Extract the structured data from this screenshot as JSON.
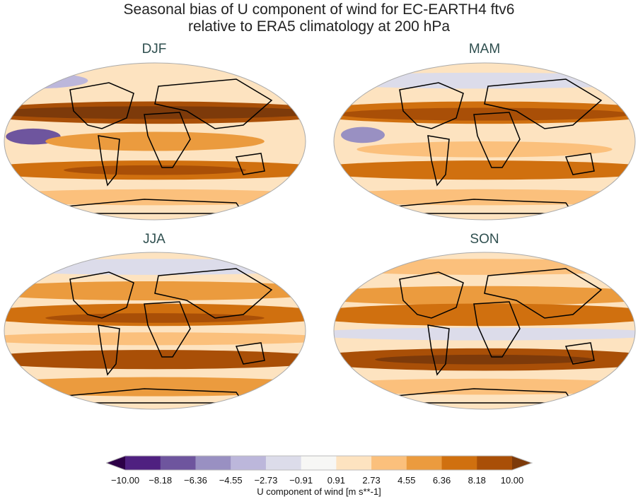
{
  "figure": {
    "title_line1": "Seasonal bias of U component of wind for EC-EARTH4 ftv6",
    "title_line2": "relative to ERA5 climatology at 200 hPa"
  },
  "panels": [
    {
      "title": "DJF"
    },
    {
      "title": "MAM"
    },
    {
      "title": "JJA"
    },
    {
      "title": "SON"
    }
  ],
  "colorbar": {
    "label": "U component of wind [m s**-1]",
    "ticks": [
      "−10.00",
      "−8.18",
      "−6.36",
      "−4.55",
      "−2.73",
      "−0.91",
      "0.91",
      "2.73",
      "4.55",
      "6.36",
      "8.18",
      "10.00"
    ],
    "extend": "both",
    "colors": [
      "#2d0047",
      "#4f2080",
      "#6e559e",
      "#9990c2",
      "#bcb7db",
      "#dcdcea",
      "#f7f7f5",
      "#fde3c0",
      "#fbc07c",
      "#eb9b3e",
      "#d0700f",
      "#a94f07",
      "#7d3a0a"
    ]
  },
  "projection": "Robinson",
  "colormap": "PuOr_r"
}
